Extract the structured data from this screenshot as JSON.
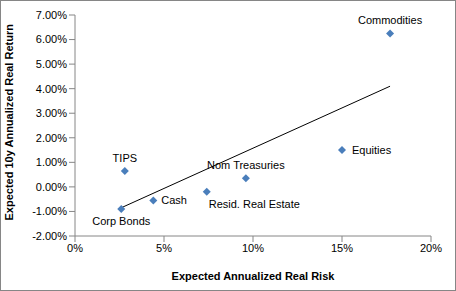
{
  "chart_data": {
    "type": "scatter",
    "x_label": "Expected Annualized Real Risk",
    "y_label": "Expected 10y Annualized Real Return",
    "xlim": [
      0,
      20
    ],
    "xticks": [
      {
        "value": 0,
        "label": "0%"
      },
      {
        "value": 5,
        "label": "5%"
      },
      {
        "value": 10,
        "label": "10%"
      },
      {
        "value": 15,
        "label": "15%"
      },
      {
        "value": 20,
        "label": "20%"
      }
    ],
    "ylim": [
      -2,
      7
    ],
    "yticks": [
      {
        "value": -2,
        "label": "-2.00%"
      },
      {
        "value": -1,
        "label": "-1.00%"
      },
      {
        "value": 0,
        "label": "0.00%"
      },
      {
        "value": 1,
        "label": "1.00%"
      },
      {
        "value": 2,
        "label": "2.00%"
      },
      {
        "value": 3,
        "label": "3.00%"
      },
      {
        "value": 4,
        "label": "4.00%"
      },
      {
        "value": 5,
        "label": "5.00%"
      },
      {
        "value": 6,
        "label": "6.00%"
      },
      {
        "value": 7,
        "label": "7.00%"
      }
    ],
    "grid": false,
    "points": {
      "labels": [
        "TIPS",
        "Cash",
        "Corp Bonds",
        "Resid. Real Estate",
        "Nom Treasuries",
        "Equities",
        "Commodities"
      ],
      "x": [
        2.8,
        4.4,
        2.6,
        7.4,
        9.6,
        15.0,
        17.7
      ],
      "y": [
        0.65,
        -0.55,
        -0.9,
        -0.2,
        0.35,
        1.5,
        6.25
      ],
      "color": "#4a7ebb",
      "marker": "diamond"
    },
    "trend_line": {
      "type": "line",
      "x": [
        2.6,
        17.7
      ],
      "y": [
        -0.85,
        4.1
      ],
      "color": "#000000"
    }
  }
}
